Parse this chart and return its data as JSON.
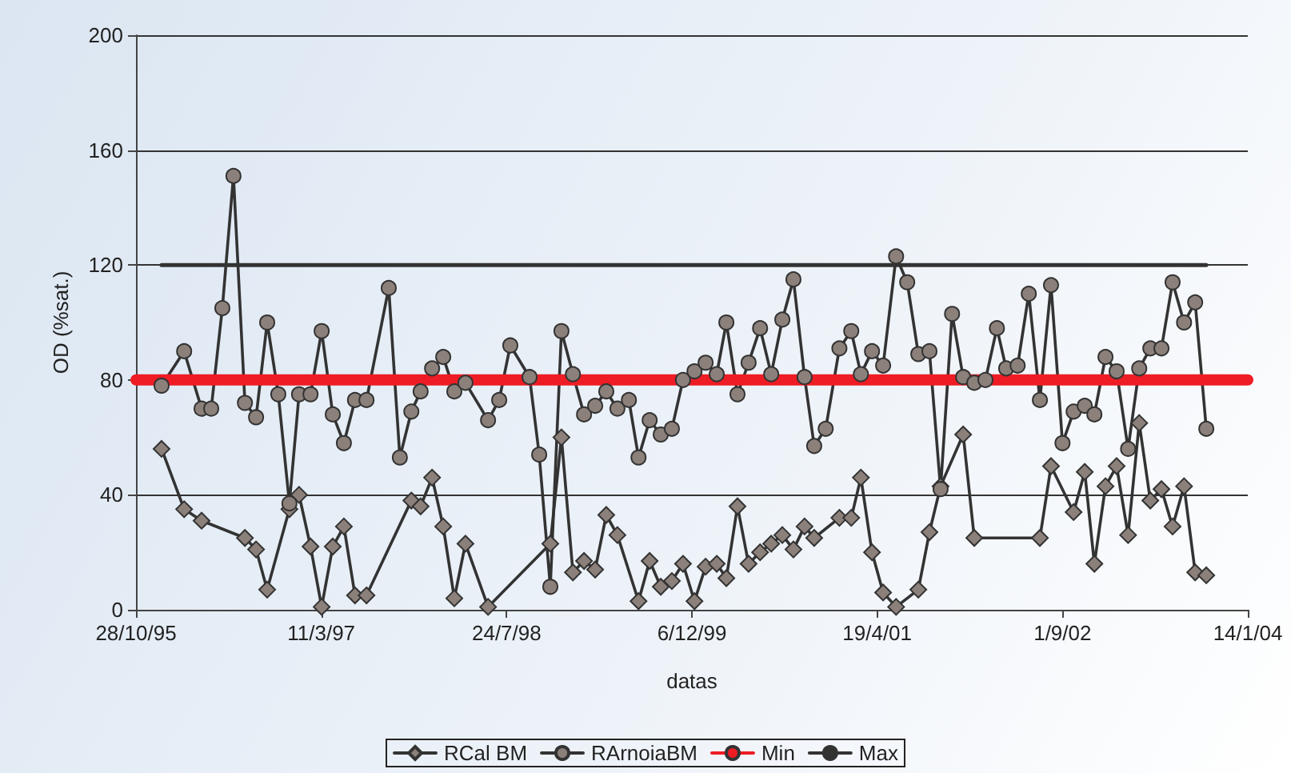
{
  "chart_data": {
    "type": "line",
    "xlabel": "datas",
    "ylabel": "OD (%sat.)",
    "xlim": [
      "1995-10-28",
      "2004-01-14"
    ],
    "xticks": [
      {
        "value": "1995-10-28",
        "label": "28/10/95"
      },
      {
        "value": "1997-03-11",
        "label": "11/3/97"
      },
      {
        "value": "1998-07-24",
        "label": "24/7/98"
      },
      {
        "value": "1999-12-06",
        "label": "6/12/99"
      },
      {
        "value": "2001-04-19",
        "label": "19/4/01"
      },
      {
        "value": "2002-09-01",
        "label": "1/9/02"
      },
      {
        "value": "2004-01-14",
        "label": "14/1/04"
      }
    ],
    "ylim": [
      0,
      200
    ],
    "yticks": [
      0,
      40,
      80,
      120,
      160,
      200
    ],
    "grid": "y",
    "legend": "bottom",
    "series": [
      {
        "name": "RCal BM",
        "color": "#8c807b",
        "marker": "diamond",
        "x": [
          "1996-01-05",
          "1996-03-06",
          "1996-04-22",
          "1996-08-17",
          "1996-09-16",
          "1996-10-16",
          "1996-12-15",
          "1997-01-10",
          "1997-02-10",
          "1997-03-12",
          "1997-04-11",
          "1997-05-11",
          "1997-06-10",
          "1997-07-11",
          "1997-11-09",
          "1997-12-04",
          "1998-01-04",
          "1998-02-03",
          "1998-03-05",
          "1998-04-04",
          "1998-06-04",
          "1998-11-19",
          "1998-12-19",
          "1999-01-19",
          "1999-02-18",
          "1999-03-20",
          "1999-04-19",
          "1999-05-19",
          "1999-07-15",
          "1999-08-14",
          "1999-09-13",
          "1999-10-13",
          "1999-11-12",
          "1999-12-13",
          "2000-01-12",
          "2000-02-11",
          "2000-03-08",
          "2000-04-07",
          "2000-05-07",
          "2000-06-07",
          "2000-07-07",
          "2000-08-06",
          "2000-09-05",
          "2000-10-05",
          "2000-10-31",
          "2001-01-07",
          "2001-02-08",
          "2001-03-06",
          "2001-04-05",
          "2001-05-05",
          "2001-06-09",
          "2001-08-08",
          "2001-09-07",
          "2001-10-07",
          "2001-12-07",
          "2002-01-06",
          "2002-07-02",
          "2002-08-01",
          "2002-10-01",
          "2002-10-31",
          "2002-11-26",
          "2002-12-26",
          "2003-01-25",
          "2003-02-25",
          "2003-03-27",
          "2003-04-26",
          "2003-05-26",
          "2003-06-25",
          "2003-07-26",
          "2003-08-25",
          "2003-09-24"
        ],
        "values": [
          56,
          35,
          31,
          25,
          21,
          7,
          35,
          40,
          22,
          1,
          22,
          29,
          5,
          5,
          38,
          36,
          46,
          29,
          4,
          23,
          1,
          23,
          60,
          13,
          17,
          14,
          33,
          26,
          3,
          17,
          8,
          10,
          16,
          3,
          15,
          16,
          11,
          36,
          16,
          20,
          23,
          26,
          21,
          29,
          25,
          32,
          32,
          46,
          20,
          6,
          1,
          7,
          27,
          43,
          61,
          25,
          25,
          50,
          34,
          48,
          16,
          43,
          50,
          26,
          65,
          38,
          42,
          29,
          43,
          13,
          12
        ]
      },
      {
        "name": "RArnoiaBM",
        "color": "#8c807b",
        "marker": "circle",
        "x": [
          "1996-01-05",
          "1996-03-06",
          "1996-04-22",
          "1996-05-18",
          "1996-06-17",
          "1996-07-17",
          "1996-08-17",
          "1996-09-16",
          "1996-10-16",
          "1996-11-15",
          "1996-12-15",
          "1997-01-10",
          "1997-02-10",
          "1997-03-12",
          "1997-04-11",
          "1997-05-11",
          "1997-06-10",
          "1997-07-11",
          "1997-09-09",
          "1997-10-09",
          "1997-11-09",
          "1997-12-04",
          "1998-01-04",
          "1998-02-03",
          "1998-03-05",
          "1998-04-04",
          "1998-06-04",
          "1998-07-04",
          "1998-08-03",
          "1998-09-24",
          "1998-10-20",
          "1998-11-19",
          "1998-12-19",
          "1999-01-19",
          "1999-02-18",
          "1999-03-20",
          "1999-04-19",
          "1999-05-19",
          "1999-06-19",
          "1999-07-15",
          "1999-08-14",
          "1999-09-13",
          "1999-10-13",
          "1999-11-12",
          "1999-12-13",
          "2000-01-12",
          "2000-02-11",
          "2000-03-08",
          "2000-04-07",
          "2000-05-07",
          "2000-06-07",
          "2000-07-07",
          "2000-08-06",
          "2000-09-05",
          "2000-10-05",
          "2000-10-31",
          "2000-12-01",
          "2001-01-07",
          "2001-02-08",
          "2001-03-06",
          "2001-04-05",
          "2001-05-05",
          "2001-06-09",
          "2001-07-09",
          "2001-08-08",
          "2001-09-07",
          "2001-10-07",
          "2001-11-07",
          "2001-12-07",
          "2002-01-06",
          "2002-02-05",
          "2002-03-08",
          "2002-04-02",
          "2002-05-03",
          "2002-06-02",
          "2002-07-02",
          "2002-08-01",
          "2002-09-01",
          "2002-10-01",
          "2002-10-31",
          "2002-11-26",
          "2002-12-26",
          "2003-01-25",
          "2003-02-25",
          "2003-03-27",
          "2003-04-26",
          "2003-05-26",
          "2003-06-25",
          "2003-07-26",
          "2003-08-25",
          "2003-09-24"
        ],
        "values": [
          78,
          90,
          70,
          70,
          105,
          151,
          72,
          67,
          100,
          75,
          37,
          75,
          75,
          97,
          68,
          58,
          73,
          73,
          112,
          53,
          69,
          76,
          84,
          88,
          76,
          79,
          66,
          73,
          92,
          81,
          54,
          8,
          97,
          82,
          68,
          71,
          76,
          70,
          73,
          53,
          66,
          61,
          63,
          80,
          83,
          86,
          82,
          100,
          75,
          86,
          98,
          82,
          101,
          115,
          81,
          57,
          63,
          91,
          97,
          82,
          90,
          85,
          123,
          114,
          89,
          90,
          42,
          103,
          81,
          79,
          80,
          98,
          84,
          85,
          110,
          73,
          113,
          58,
          69,
          71,
          68,
          88,
          83,
          56,
          84,
          91,
          91,
          114,
          100,
          107,
          63
        ]
      },
      {
        "name": "Min",
        "color": "#ee1c24",
        "marker": "none",
        "x": [
          "1995-10-28",
          "2004-01-14"
        ],
        "values": [
          80,
          80
        ]
      },
      {
        "name": "Max",
        "color": "#333333",
        "marker": "none",
        "x": [
          "1996-01-05",
          "2003-09-24"
        ],
        "values": [
          120,
          120
        ]
      }
    ]
  }
}
